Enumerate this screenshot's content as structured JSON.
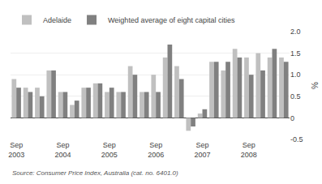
{
  "chart_data": {
    "type": "bar",
    "categories": [
      "Sep\n2003",
      null,
      null,
      null,
      "Sep\n2004",
      null,
      null,
      null,
      "Sep\n2005",
      null,
      null,
      null,
      "Sep\n2006",
      null,
      null,
      null,
      "Sep\n2007",
      null,
      null,
      null,
      "Sep\n2008",
      null,
      null,
      null
    ],
    "series": [
      {
        "name": "Adelaide",
        "color": "#c0c0c0",
        "values": [
          0.9,
          0.7,
          0.7,
          1.1,
          0.6,
          0.3,
          0.7,
          0.8,
          0.6,
          0.6,
          1.2,
          0.6,
          1.0,
          1.4,
          1.2,
          -0.3,
          0.1,
          1.3,
          1.1,
          1.6,
          1.4,
          1.5,
          1.4,
          1.4
        ]
      },
      {
        "name": "Weighted average of eight capital cities",
        "color": "#808080",
        "values": [
          0.7,
          0.6,
          0.5,
          1.1,
          0.6,
          0.4,
          0.7,
          0.8,
          0.7,
          0.6,
          1.0,
          0.6,
          0.6,
          1.7,
          0.9,
          -0.2,
          0.2,
          1.3,
          1.3,
          1.4,
          1.0,
          1.1,
          1.6,
          1.3
        ]
      }
    ],
    "ylabel": "%",
    "ylim": [
      -0.5,
      2.0
    ],
    "yticks": [
      -0.5,
      0,
      0.5,
      {
        "value": 1,
        "label": "1.0"
      },
      1.5,
      {
        "value": 2,
        "label": "2.0"
      }
    ],
    "grid": true,
    "legend": "upper left",
    "annotations": [
      "Source: Consumer Price Index, Australia (cat. no. 6401.0)"
    ]
  }
}
